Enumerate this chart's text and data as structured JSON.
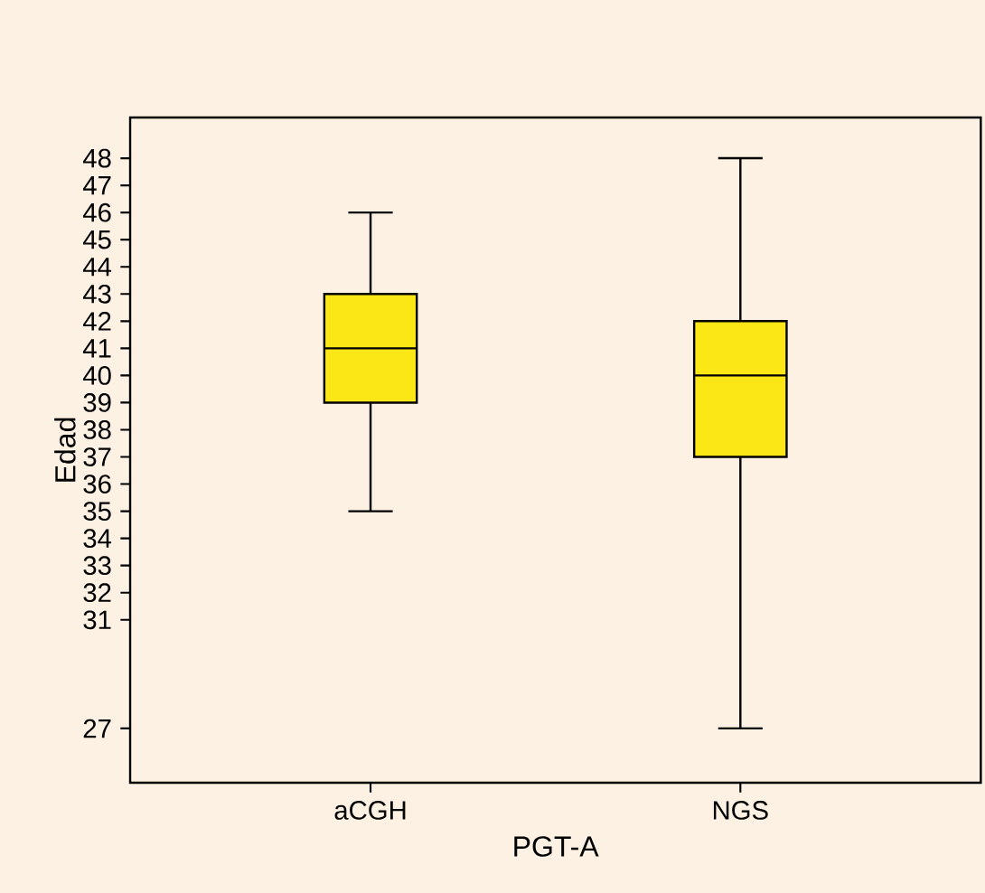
{
  "chart_data": {
    "type": "box",
    "xlabel": "PGT-A",
    "ylabel": "Edad",
    "categories": [
      "aCGH",
      "NGS"
    ],
    "color": "#fbe715",
    "boxes": [
      {
        "low": 35,
        "q1": 39,
        "median": 41,
        "q3": 43,
        "high": 46
      },
      {
        "low": 27,
        "q1": 37,
        "median": 40,
        "q3": 42,
        "high": 48
      }
    ],
    "ylim": [
      25,
      49.5
    ],
    "yticks": [
      27,
      31,
      32,
      33,
      34,
      35,
      36,
      37,
      38,
      39,
      40,
      41,
      42,
      43,
      44,
      45,
      46,
      47,
      48
    ]
  }
}
